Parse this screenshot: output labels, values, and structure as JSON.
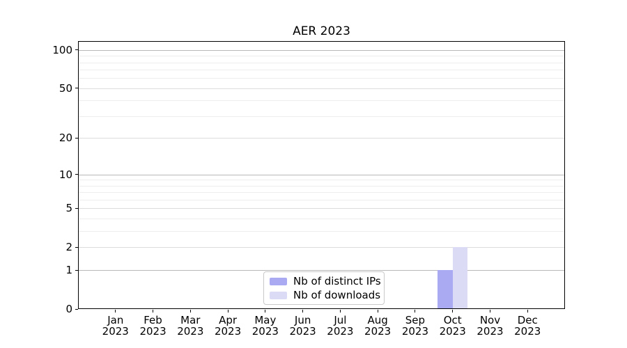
{
  "chart_data": {
    "type": "bar",
    "title": "AER 2023",
    "x_year": "2023",
    "categories": [
      "Jan",
      "Feb",
      "Mar",
      "Apr",
      "May",
      "Jun",
      "Jul",
      "Aug",
      "Sep",
      "Oct",
      "Nov",
      "Dec"
    ],
    "series": [
      {
        "name": "Nb of distinct IPs",
        "color": "#aaaaf2",
        "values": [
          0,
          0,
          0,
          0,
          0,
          0,
          0,
          0,
          0,
          1,
          0,
          0
        ]
      },
      {
        "name": "Nb of downloads",
        "color": "#dbdbf6",
        "values": [
          0,
          0,
          0,
          0,
          0,
          0,
          0,
          0,
          0,
          2,
          0,
          0
        ]
      }
    ],
    "y_axis": {
      "scale": "log10(1+x)",
      "major_ticks": [
        0,
        1,
        2,
        5,
        10,
        20,
        50,
        100
      ],
      "decade_ticks": [
        1,
        10,
        100
      ],
      "minor_ticks": [
        3,
        4,
        6,
        7,
        8,
        9,
        30,
        40,
        60,
        70,
        80,
        90
      ],
      "ylim": [
        0,
        117
      ]
    },
    "grid": {
      "decade_color": "#b8b8b8",
      "major_color": "#dcdcdc",
      "minor_color": "#ededed"
    },
    "legend": {
      "position": "lower center"
    },
    "xlabel": "",
    "ylabel": ""
  }
}
